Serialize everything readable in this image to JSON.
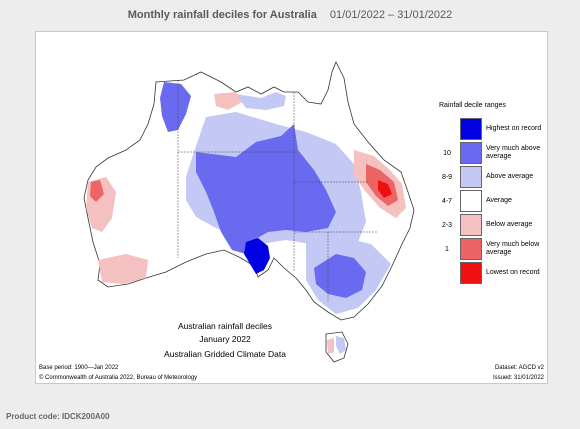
{
  "header": {
    "title": "Monthly rainfall deciles for Australia",
    "date_range": "01/01/2022 – 31/01/2022"
  },
  "legend": {
    "title": "Rainfall decile ranges",
    "items": [
      {
        "code": "",
        "label": "Highest on record",
        "color": "#0000e0"
      },
      {
        "code": "10",
        "label": "Very much above average",
        "color": "#6a6af0"
      },
      {
        "code": "8-9",
        "label": "Above average",
        "color": "#c4c8f4"
      },
      {
        "code": "4-7",
        "label": "Average",
        "color": "#ffffff"
      },
      {
        "code": "2-3",
        "label": "Below average",
        "color": "#f4c0c0"
      },
      {
        "code": "1",
        "label": "Very much below average",
        "color": "#ec6464"
      },
      {
        "code": "",
        "label": "Lowest on record",
        "color": "#ee1010"
      }
    ]
  },
  "caption": {
    "line1": "Australian rainfall deciles",
    "line2": "January 2022",
    "line3": "Australian Gridded Climate Data"
  },
  "footer": {
    "base_period": "Base period: 1900—Jan 2022",
    "dataset": "Dataset: AGCD v2",
    "copyright": "© Commonwealth of Australia 2022, Bureau of Meteorology",
    "issued": "Issued: 31/01/2022"
  },
  "product_code": "Product code: IDCK200A00"
}
